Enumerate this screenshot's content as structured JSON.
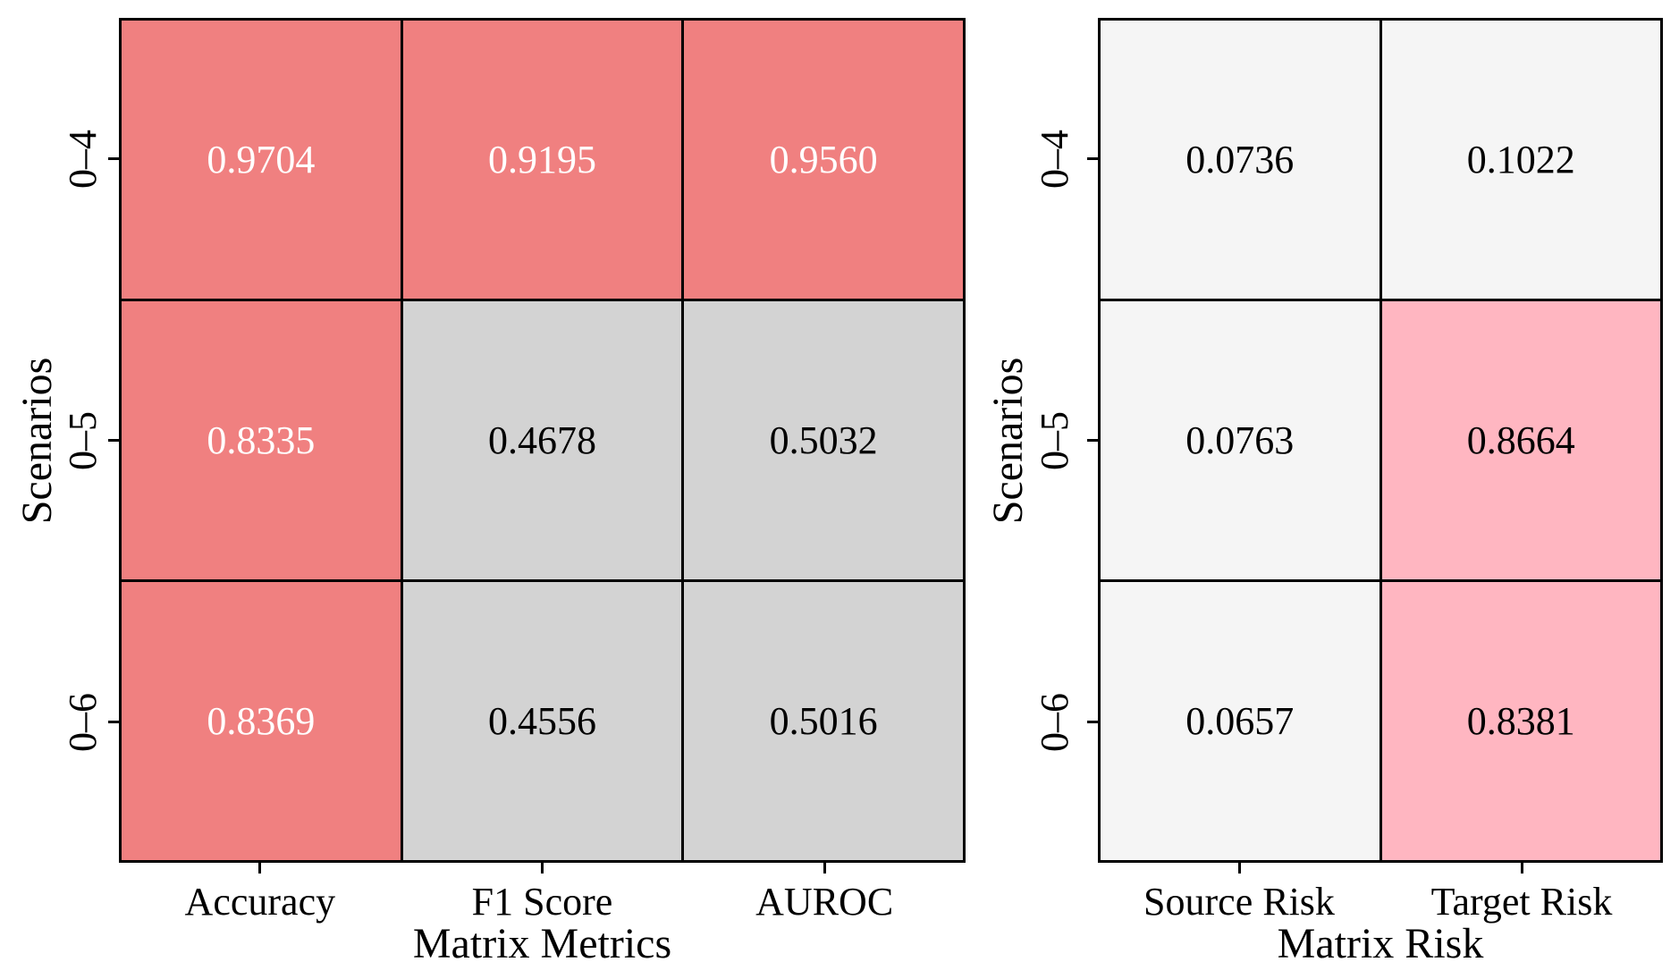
{
  "figure": {
    "background": "#FFFFFF",
    "line_color": "#000000"
  },
  "chart_data": [
    {
      "type": "heatmap",
      "title": "",
      "xlabel": "Matrix Metrics",
      "ylabel": "Scenarios",
      "x_categories": [
        "Accuracy",
        "F1 Score",
        "AUROC"
      ],
      "y_categories": [
        "0–4",
        "0–5",
        "0–6"
      ],
      "values": [
        [
          0.9704,
          0.9195,
          0.956
        ],
        [
          0.8335,
          0.4678,
          0.5032
        ],
        [
          0.8369,
          0.4556,
          0.5016
        ]
      ],
      "display": [
        [
          "0.9704",
          "0.9195",
          "0.9560"
        ],
        [
          "0.8335",
          "0.4678",
          "0.5032"
        ],
        [
          "0.8369",
          "0.4556",
          "0.5016"
        ]
      ],
      "cell_colors": [
        [
          "#F08080",
          "#F08080",
          "#F08080"
        ],
        [
          "#F08080",
          "#D3D3D3",
          "#D3D3D3"
        ],
        [
          "#F08080",
          "#D3D3D3",
          "#D3D3D3"
        ]
      ],
      "text_colors": [
        [
          "#FFFFFF",
          "#FFFFFF",
          "#FFFFFF"
        ],
        [
          "#FFFFFF",
          "#000000",
          "#000000"
        ],
        [
          "#FFFFFF",
          "#000000",
          "#000000"
        ]
      ],
      "palette": {
        "high": "#F08080",
        "low": "#D3D3D3"
      },
      "grid": "on",
      "legend": "none"
    },
    {
      "type": "heatmap",
      "title": "",
      "xlabel": "Matrix Risk",
      "ylabel": "Scenarios",
      "x_categories": [
        "Source Risk",
        "Target Risk"
      ],
      "y_categories": [
        "0–4",
        "0–5",
        "0–6"
      ],
      "values": [
        [
          0.0736,
          0.1022
        ],
        [
          0.0763,
          0.8664
        ],
        [
          0.0657,
          0.8381
        ]
      ],
      "display": [
        [
          "0.0736",
          "0.1022"
        ],
        [
          "0.0763",
          "0.8664"
        ],
        [
          "0.0657",
          "0.8381"
        ]
      ],
      "cell_colors": [
        [
          "#F5F5F5",
          "#F5F5F5"
        ],
        [
          "#F5F5F5",
          "#FFB6C1"
        ],
        [
          "#F5F5F5",
          "#FFB6C1"
        ]
      ],
      "text_colors": [
        [
          "#000000",
          "#000000"
        ],
        [
          "#000000",
          "#000000"
        ],
        [
          "#000000",
          "#000000"
        ]
      ],
      "palette": {
        "high": "#FFB6C1",
        "low": "#F5F5F5"
      },
      "grid": "on",
      "legend": "none"
    }
  ]
}
